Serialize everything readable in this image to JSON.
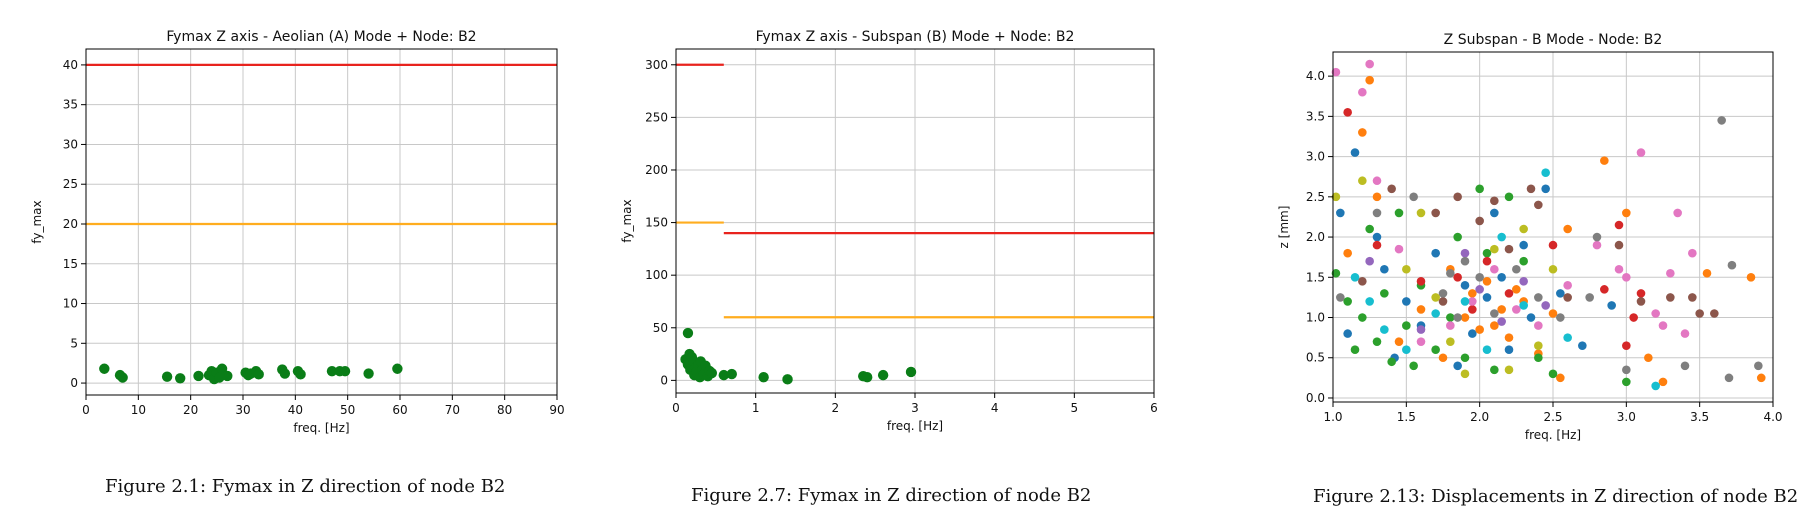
{
  "colors": {
    "green": "#0a7d17",
    "red": "#e8231d",
    "orange": "#ffad1f",
    "grid": "#c8c8c8",
    "axis": "#000000"
  },
  "chart_data": [
    {
      "type": "scatter",
      "title": "Fymax Z axis - Aeolian (A) Mode + Node: B2",
      "xlabel": "freq. [Hz]",
      "ylabel": "fy_max",
      "xlim": [
        0,
        90
      ],
      "ylim": [
        -1.5,
        42
      ],
      "xticks": [
        0,
        10,
        20,
        30,
        40,
        50,
        60,
        70,
        80,
        90
      ],
      "yticks": [
        0,
        5,
        10,
        15,
        20,
        25,
        30,
        35,
        40
      ],
      "grid": true,
      "hlines": [
        {
          "y": 40,
          "x_from": 0,
          "x_to": 90,
          "color": "#e8231d"
        },
        {
          "y": 20,
          "x_from": 0,
          "x_to": 90,
          "color": "#ffad1f"
        }
      ],
      "series": [
        {
          "color": "#0a7d17",
          "points": [
            [
              3.5,
              1.8
            ],
            [
              6.5,
              1.0
            ],
            [
              7.0,
              0.7
            ],
            [
              15.5,
              0.8
            ],
            [
              18.0,
              0.6
            ],
            [
              21.5,
              0.9
            ],
            [
              23.5,
              1.0
            ],
            [
              24.0,
              1.5
            ],
            [
              24.5,
              0.5
            ],
            [
              25.0,
              1.3
            ],
            [
              25.5,
              0.7
            ],
            [
              26.0,
              1.8
            ],
            [
              27.0,
              0.9
            ],
            [
              30.5,
              1.3
            ],
            [
              31.0,
              1.0
            ],
            [
              31.5,
              1.2
            ],
            [
              32.5,
              1.5
            ],
            [
              33.0,
              1.1
            ],
            [
              37.5,
              1.7
            ],
            [
              38.0,
              1.2
            ],
            [
              40.5,
              1.5
            ],
            [
              41.0,
              1.1
            ],
            [
              47.0,
              1.5
            ],
            [
              48.5,
              1.5
            ],
            [
              49.5,
              1.5
            ],
            [
              54.0,
              1.2
            ],
            [
              59.5,
              1.8
            ]
          ]
        }
      ]
    },
    {
      "type": "scatter",
      "title": "Fymax Z axis - Subspan (B) Mode + Node: B2",
      "xlabel": "freq. [Hz]",
      "ylabel": "fy_max",
      "xlim": [
        0,
        6
      ],
      "ylim": [
        -12,
        315
      ],
      "xticks": [
        0,
        1,
        2,
        3,
        4,
        5,
        6
      ],
      "yticks": [
        0,
        50,
        100,
        150,
        200,
        250,
        300
      ],
      "grid": true,
      "hlines": [
        {
          "y": 300,
          "x_from": 0,
          "x_to": 0.6,
          "color": "#e8231d"
        },
        {
          "y": 150,
          "x_from": 0,
          "x_to": 0.6,
          "color": "#ffad1f"
        },
        {
          "y": 140,
          "x_from": 0.6,
          "x_to": 6,
          "color": "#e8231d"
        },
        {
          "y": 60,
          "x_from": 0.6,
          "x_to": 6,
          "color": "#ffad1f"
        }
      ],
      "series": [
        {
          "color": "#0a7d17",
          "points": [
            [
              0.15,
              45
            ],
            [
              0.12,
              20
            ],
            [
              0.15,
              15
            ],
            [
              0.17,
              25
            ],
            [
              0.18,
              10
            ],
            [
              0.2,
              22
            ],
            [
              0.22,
              18
            ],
            [
              0.23,
              5
            ],
            [
              0.25,
              12
            ],
            [
              0.26,
              8
            ],
            [
              0.28,
              15
            ],
            [
              0.3,
              3
            ],
            [
              0.31,
              18
            ],
            [
              0.33,
              10
            ],
            [
              0.35,
              6
            ],
            [
              0.37,
              14
            ],
            [
              0.4,
              4
            ],
            [
              0.42,
              9
            ],
            [
              0.45,
              7
            ],
            [
              0.6,
              5
            ],
            [
              0.7,
              6
            ],
            [
              1.1,
              3
            ],
            [
              1.4,
              1
            ],
            [
              2.35,
              4
            ],
            [
              2.4,
              3
            ],
            [
              2.6,
              5
            ],
            [
              2.95,
              8
            ]
          ]
        }
      ]
    },
    {
      "type": "scatter",
      "title": "Z Subspan - B Mode - Node: B2",
      "xlabel": "freq. [Hz]",
      "ylabel": "z [mm]",
      "xlim": [
        1.0,
        4.0
      ],
      "ylim": [
        -0.05,
        4.3
      ],
      "xticks": [
        1.0,
        1.5,
        2.0,
        2.5,
        3.0,
        3.5,
        4.0
      ],
      "yticks": [
        0.0,
        0.5,
        1.0,
        1.5,
        2.0,
        2.5,
        3.0,
        3.5,
        4.0
      ],
      "grid": true,
      "series": [
        {
          "color": "#1f77b4",
          "points": [
            [
              1.05,
              2.3
            ],
            [
              1.1,
              0.8
            ],
            [
              1.15,
              3.05
            ],
            [
              1.3,
              2.0
            ],
            [
              1.35,
              1.6
            ],
            [
              1.42,
              0.5
            ],
            [
              1.5,
              1.2
            ],
            [
              1.6,
              0.9
            ],
            [
              1.7,
              1.8
            ],
            [
              1.85,
              0.4
            ],
            [
              1.9,
              1.4
            ],
            [
              1.95,
              0.8
            ],
            [
              2.05,
              1.25
            ],
            [
              2.1,
              2.3
            ],
            [
              2.15,
              1.5
            ],
            [
              2.2,
              0.6
            ],
            [
              2.3,
              1.9
            ],
            [
              2.35,
              1.0
            ],
            [
              2.45,
              2.6
            ],
            [
              2.55,
              1.3
            ],
            [
              2.7,
              0.65
            ],
            [
              2.9,
              1.15
            ]
          ]
        },
        {
          "color": "#ff7f0e",
          "points": [
            [
              1.1,
              1.8
            ],
            [
              1.2,
              3.3
            ],
            [
              1.25,
              3.95
            ],
            [
              1.3,
              2.5
            ],
            [
              1.45,
              0.7
            ],
            [
              1.6,
              1.1
            ],
            [
              1.75,
              0.5
            ],
            [
              1.8,
              1.6
            ],
            [
              1.9,
              1.0
            ],
            [
              1.95,
              1.3
            ],
            [
              2.0,
              0.85
            ],
            [
              2.05,
              1.45
            ],
            [
              2.1,
              0.9
            ],
            [
              2.15,
              1.1
            ],
            [
              2.2,
              0.75
            ],
            [
              2.25,
              1.35
            ],
            [
              2.3,
              1.2
            ],
            [
              2.4,
              0.55
            ],
            [
              2.5,
              1.05
            ],
            [
              2.55,
              0.25
            ],
            [
              2.6,
              2.1
            ],
            [
              2.85,
              2.95
            ],
            [
              3.0,
              2.3
            ],
            [
              3.15,
              0.5
            ],
            [
              3.25,
              0.2
            ],
            [
              3.55,
              1.55
            ],
            [
              3.85,
              1.5
            ],
            [
              3.92,
              0.25
            ]
          ]
        },
        {
          "color": "#2ca02c",
          "points": [
            [
              1.02,
              1.55
            ],
            [
              1.1,
              1.2
            ],
            [
              1.15,
              0.6
            ],
            [
              1.2,
              1.0
            ],
            [
              1.25,
              2.1
            ],
            [
              1.3,
              0.7
            ],
            [
              1.35,
              1.3
            ],
            [
              1.4,
              0.45
            ],
            [
              1.45,
              2.3
            ],
            [
              1.5,
              0.9
            ],
            [
              1.55,
              0.4
            ],
            [
              1.6,
              1.4
            ],
            [
              1.7,
              0.6
            ],
            [
              1.8,
              1.0
            ],
            [
              1.85,
              2.0
            ],
            [
              1.9,
              0.5
            ],
            [
              2.0,
              2.6
            ],
            [
              2.05,
              1.8
            ],
            [
              2.1,
              0.35
            ],
            [
              2.2,
              2.5
            ],
            [
              2.3,
              1.7
            ],
            [
              2.4,
              0.5
            ],
            [
              2.5,
              0.3
            ],
            [
              3.0,
              0.2
            ]
          ]
        },
        {
          "color": "#d62728",
          "points": [
            [
              1.1,
              3.55
            ],
            [
              1.3,
              1.9
            ],
            [
              1.6,
              1.45
            ],
            [
              1.85,
              1.5
            ],
            [
              1.95,
              1.1
            ],
            [
              2.05,
              1.7
            ],
            [
              2.2,
              1.3
            ],
            [
              2.5,
              1.9
            ],
            [
              2.85,
              1.35
            ],
            [
              2.95,
              2.15
            ],
            [
              3.0,
              0.65
            ],
            [
              3.05,
              1.0
            ],
            [
              3.1,
              1.3
            ]
          ]
        },
        {
          "color": "#9467bd",
          "points": [
            [
              1.25,
              1.7
            ],
            [
              1.6,
              0.85
            ],
            [
              1.9,
              1.8
            ],
            [
              2.0,
              1.35
            ],
            [
              2.15,
              0.95
            ],
            [
              2.3,
              1.45
            ],
            [
              2.45,
              1.15
            ]
          ]
        },
        {
          "color": "#8c564b",
          "points": [
            [
              1.2,
              1.45
            ],
            [
              1.4,
              2.6
            ],
            [
              1.7,
              2.3
            ],
            [
              1.75,
              1.2
            ],
            [
              1.85,
              2.5
            ],
            [
              2.0,
              2.2
            ],
            [
              2.1,
              2.45
            ],
            [
              2.2,
              1.85
            ],
            [
              2.35,
              2.6
            ],
            [
              2.4,
              2.4
            ],
            [
              2.6,
              1.25
            ],
            [
              2.95,
              1.9
            ],
            [
              3.1,
              1.2
            ],
            [
              3.3,
              1.25
            ],
            [
              3.45,
              1.25
            ],
            [
              3.5,
              1.05
            ],
            [
              3.6,
              1.05
            ]
          ]
        },
        {
          "color": "#e377c2",
          "points": [
            [
              1.02,
              4.05
            ],
            [
              1.2,
              3.8
            ],
            [
              1.25,
              4.15
            ],
            [
              1.3,
              2.7
            ],
            [
              1.45,
              1.85
            ],
            [
              1.6,
              0.7
            ],
            [
              1.8,
              0.9
            ],
            [
              1.95,
              1.2
            ],
            [
              2.1,
              1.6
            ],
            [
              2.25,
              1.1
            ],
            [
              2.4,
              0.9
            ],
            [
              2.6,
              1.4
            ],
            [
              2.8,
              1.9
            ],
            [
              2.95,
              1.6
            ],
            [
              3.0,
              1.5
            ],
            [
              3.1,
              3.05
            ],
            [
              3.2,
              1.05
            ],
            [
              3.25,
              0.9
            ],
            [
              3.3,
              1.55
            ],
            [
              3.35,
              2.3
            ],
            [
              3.4,
              0.8
            ],
            [
              3.45,
              1.8
            ]
          ]
        },
        {
          "color": "#7f7f7f",
          "points": [
            [
              1.05,
              1.25
            ],
            [
              1.3,
              2.3
            ],
            [
              1.55,
              2.5
            ],
            [
              1.75,
              1.3
            ],
            [
              1.8,
              1.55
            ],
            [
              1.85,
              1.0
            ],
            [
              1.9,
              1.7
            ],
            [
              2.0,
              1.5
            ],
            [
              2.1,
              1.05
            ],
            [
              2.25,
              1.6
            ],
            [
              2.4,
              1.25
            ],
            [
              2.55,
              1.0
            ],
            [
              2.75,
              1.25
            ],
            [
              2.8,
              2.0
            ],
            [
              3.0,
              0.35
            ],
            [
              3.4,
              0.4
            ],
            [
              3.65,
              3.45
            ],
            [
              3.7,
              0.25
            ],
            [
              3.72,
              1.65
            ],
            [
              3.9,
              0.4
            ]
          ]
        },
        {
          "color": "#bcbd22",
          "points": [
            [
              1.02,
              2.5
            ],
            [
              1.2,
              2.7
            ],
            [
              1.5,
              1.6
            ],
            [
              1.6,
              2.3
            ],
            [
              1.7,
              1.25
            ],
            [
              1.8,
              0.7
            ],
            [
              1.9,
              0.3
            ],
            [
              2.1,
              1.85
            ],
            [
              2.2,
              0.35
            ],
            [
              2.3,
              2.1
            ],
            [
              2.4,
              0.65
            ],
            [
              2.5,
              1.6
            ]
          ]
        },
        {
          "color": "#17becf",
          "points": [
            [
              1.15,
              1.5
            ],
            [
              1.25,
              1.2
            ],
            [
              1.35,
              0.85
            ],
            [
              1.5,
              0.6
            ],
            [
              1.7,
              1.05
            ],
            [
              1.9,
              1.2
            ],
            [
              2.05,
              0.6
            ],
            [
              2.15,
              2.0
            ],
            [
              2.3,
              1.15
            ],
            [
              2.45,
              2.8
            ],
            [
              2.6,
              0.75
            ],
            [
              3.2,
              0.15
            ]
          ]
        }
      ]
    }
  ],
  "captions": [
    "Figure 2.1: Fymax in Z direction of node B2",
    "Figure 2.7: Fymax in Z direction of node B2",
    "Figure 2.13: Displacements in Z direction of node B2"
  ]
}
